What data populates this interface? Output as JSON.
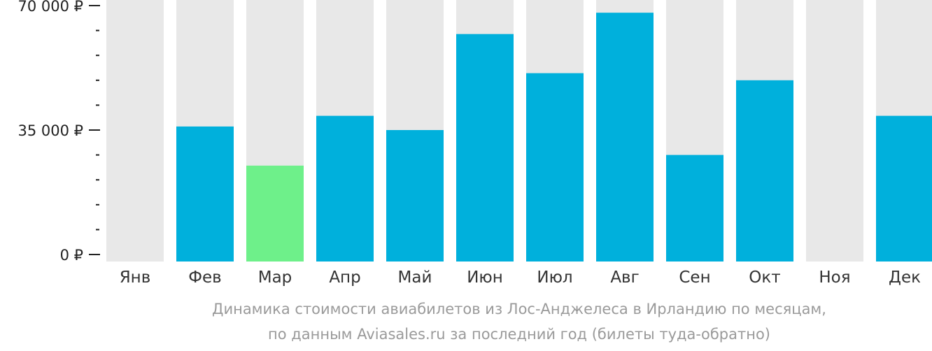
{
  "chart_data": {
    "type": "bar",
    "categories": [
      "Янв",
      "Фев",
      "Мар",
      "Апр",
      "Май",
      "Июн",
      "Июл",
      "Авг",
      "Сен",
      "Окт",
      "Ноя",
      "Дек"
    ],
    "values": [
      null,
      36000,
      25000,
      39000,
      35000,
      62000,
      51000,
      68000,
      28000,
      49000,
      null,
      39000
    ],
    "highlight_index": 2,
    "ylim": [
      0,
      70000
    ],
    "yticks": [
      {
        "value": 0,
        "label": "0 ₽"
      },
      {
        "value": 35000,
        "label": "35 000 ₽"
      },
      {
        "value": 70000,
        "label": "70 000 ₽"
      }
    ],
    "minor_tick_step": 7000,
    "caption_line1": "Динамика стоимости авиабилетов из Лос-Анджелеса в Ирландию по месяцам,",
    "caption_line2": "по данным Aviasales.ru за последний год (билеты туда-обратно)",
    "colors": {
      "bar": "#00b0dc",
      "highlight": "#6ef08a",
      "background_column": "#e8e8e8",
      "axis": "#222222"
    }
  }
}
